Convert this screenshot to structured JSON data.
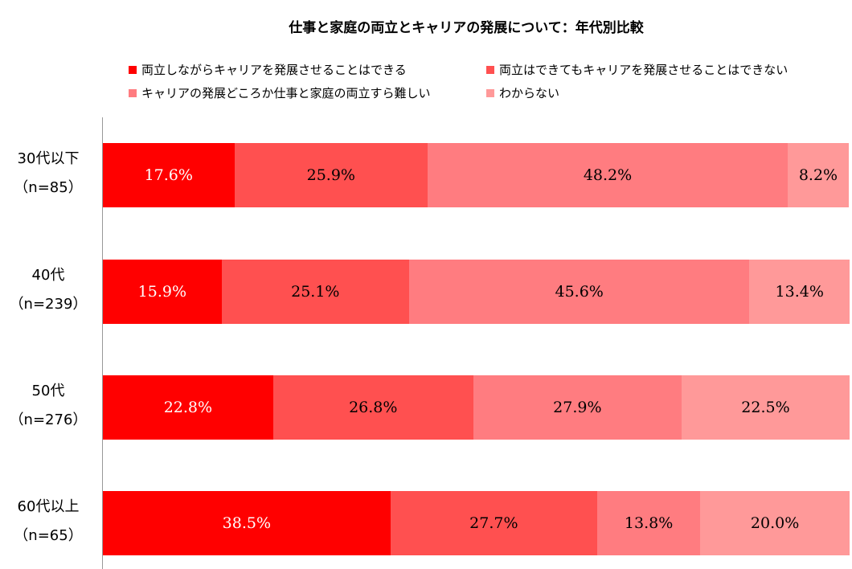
{
  "chart_data": {
    "type": "bar",
    "orientation": "horizontal",
    "stacked": true,
    "title": "仕事と家庭の両立とキャリアの発展について：年代別比較",
    "categories": [
      {
        "label": "30代以下",
        "n": "（n=85）"
      },
      {
        "label": "40代",
        "n": "（n=239）"
      },
      {
        "label": "50代",
        "n": "（n=276）"
      },
      {
        "label": "60代以上",
        "n": "（n=65）"
      }
    ],
    "series": [
      {
        "name": "両立しながらキャリアを発展させることはできる",
        "color": "#ff0000",
        "text_color": "#ffffff",
        "values": [
          17.6,
          15.9,
          22.8,
          38.5
        ],
        "labels": [
          "17.6%",
          "15.9%",
          "22.8%",
          "38.5%"
        ]
      },
      {
        "name": "両立はできてもキャリアを発展させることはできない",
        "color": "#ff5050",
        "text_color": "#000000",
        "values": [
          25.9,
          25.1,
          26.8,
          27.7
        ],
        "labels": [
          "25.9%",
          "25.1%",
          "26.8%",
          "27.7%"
        ]
      },
      {
        "name": "キャリアの発展どころか仕事と家庭の両立すら難しい",
        "color": "#ff7c80",
        "text_color": "#000000",
        "values": [
          48.2,
          45.6,
          27.9,
          13.8
        ],
        "labels": [
          "48.2%",
          "45.6%",
          "27.9%",
          "13.8%"
        ]
      },
      {
        "name": "わからない",
        "color": "#ff9999",
        "text_color": "#000000",
        "values": [
          8.2,
          13.4,
          22.5,
          20.0
        ],
        "labels": [
          "8.2%",
          "13.4%",
          "22.5%",
          "20.0%"
        ]
      }
    ],
    "xlim": [
      0,
      100
    ],
    "legend_position": "top",
    "grid": false
  }
}
